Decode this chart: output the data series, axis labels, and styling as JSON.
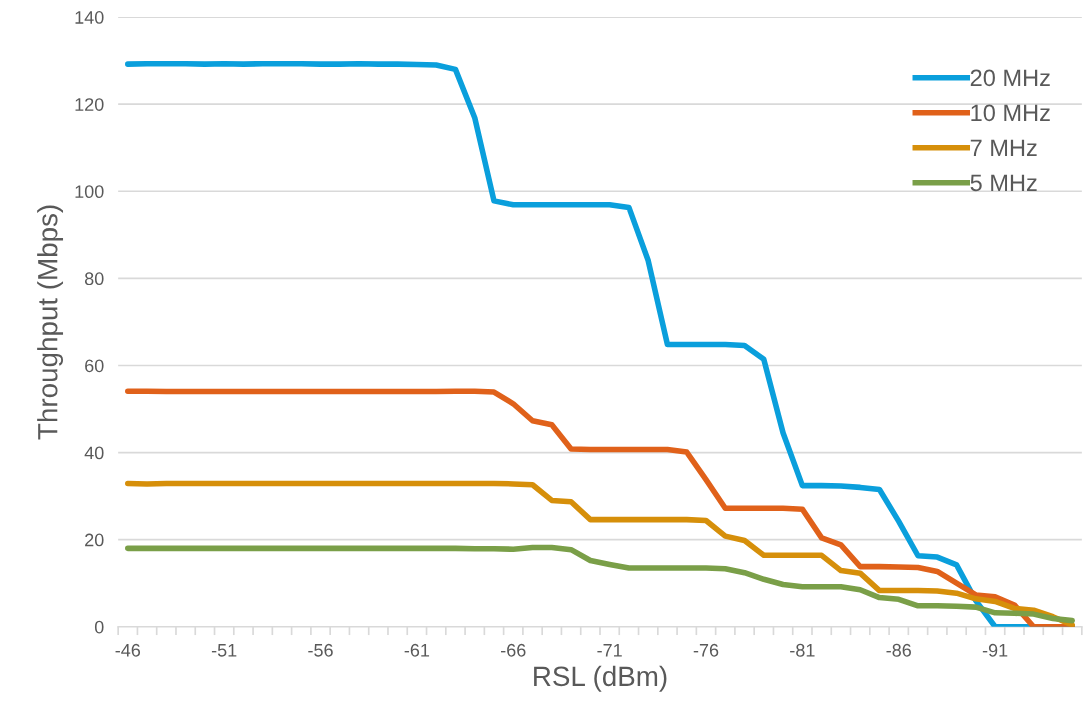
{
  "chart_data": {
    "type": "line",
    "xlabel": "RSL (dBm)",
    "ylabel": "Throughput (Mbps)",
    "categories": [
      "-46",
      null,
      null,
      null,
      null,
      "-51",
      null,
      null,
      null,
      null,
      "-56",
      null,
      null,
      null,
      null,
      "-61",
      null,
      null,
      null,
      null,
      "-66",
      null,
      null,
      null,
      null,
      "-71",
      null,
      null,
      null,
      null,
      "-76",
      null,
      null,
      null,
      null,
      "-81",
      null,
      null,
      null,
      null,
      "-86",
      null,
      null,
      null,
      null,
      "-91",
      null,
      null,
      null,
      null
    ],
    "series": [
      {
        "name": "20 MHz",
        "color": "#0a9fdc",
        "values": [
          129.2,
          129.3,
          129.3,
          129.3,
          129.2,
          129.3,
          129.2,
          129.3,
          129.3,
          129.3,
          129.2,
          129.2,
          129.3,
          129.2,
          129.2,
          129.1,
          129.0,
          128.0,
          116.9,
          97.8,
          96.9,
          96.9,
          96.9,
          96.9,
          96.9,
          96.9,
          96.3,
          84.1,
          64.8,
          64.8,
          64.8,
          64.8,
          64.6,
          61.4,
          44.5,
          32.4,
          32.4,
          32.3,
          32.0,
          31.5,
          24.2,
          16.3,
          16.0,
          14.2,
          6,
          0,
          0,
          0,
          0,
          0
        ]
      },
      {
        "name": "10 MHz",
        "color": "#e0611a",
        "values": [
          54.1,
          54.1,
          54.0,
          54.0,
          54.0,
          54.0,
          54.0,
          54.0,
          54.0,
          54.0,
          54.0,
          54.0,
          54.0,
          54.0,
          54.0,
          54.0,
          54.0,
          54.1,
          54.1,
          53.9,
          51.2,
          47.3,
          46.4,
          40.8,
          40.7,
          40.7,
          40.7,
          40.7,
          40.7,
          40.1,
          33.8,
          27.2,
          27.2,
          27.2,
          27.2,
          27.0,
          20.4,
          18.8,
          13.8,
          13.8,
          13.7,
          13.6,
          12.7,
          10,
          7.3,
          6.9,
          5,
          0,
          0,
          0
        ]
      },
      {
        "name": "7 MHz",
        "color": "#d68f0a",
        "values": [
          32.9,
          32.8,
          32.9,
          32.9,
          32.9,
          32.9,
          32.9,
          32.9,
          32.9,
          32.9,
          32.9,
          32.9,
          32.9,
          32.9,
          32.9,
          32.9,
          32.9,
          32.9,
          32.9,
          32.9,
          32.8,
          32.6,
          29.0,
          28.7,
          24.6,
          24.6,
          24.6,
          24.6,
          24.6,
          24.6,
          24.4,
          20.8,
          19.8,
          16.4,
          16.4,
          16.4,
          16.4,
          12.9,
          12.3,
          8.3,
          8.3,
          8.3,
          8.2,
          7.7,
          6.4,
          5.8,
          4.2,
          3.8,
          2.3,
          0.4
        ]
      },
      {
        "name": "5 MHz",
        "color": "#7a9f48",
        "values": [
          18.0,
          18.0,
          18.0,
          18.0,
          18.0,
          18.0,
          18.0,
          18.0,
          18.0,
          18.0,
          18.0,
          18.0,
          18.0,
          18.0,
          18.0,
          18.0,
          18.0,
          18.0,
          17.9,
          17.9,
          17.8,
          18.2,
          18.2,
          17.7,
          15.2,
          14.3,
          13.5,
          13.5,
          13.5,
          13.5,
          13.5,
          13.3,
          12.4,
          10.9,
          9.7,
          9.2,
          9.2,
          9.2,
          8.5,
          6.7,
          6.3,
          4.8,
          4.8,
          4.7,
          4.5,
          3.2,
          3.1,
          2.9,
          1.9,
          1.4
        ]
      }
    ],
    "ylim": [
      0,
      140
    ],
    "yticks": [
      0,
      20,
      40,
      60,
      80,
      100,
      120,
      140
    ],
    "grid": "y",
    "legend": "top right",
    "marker": "none",
    "line_style": "solid"
  }
}
